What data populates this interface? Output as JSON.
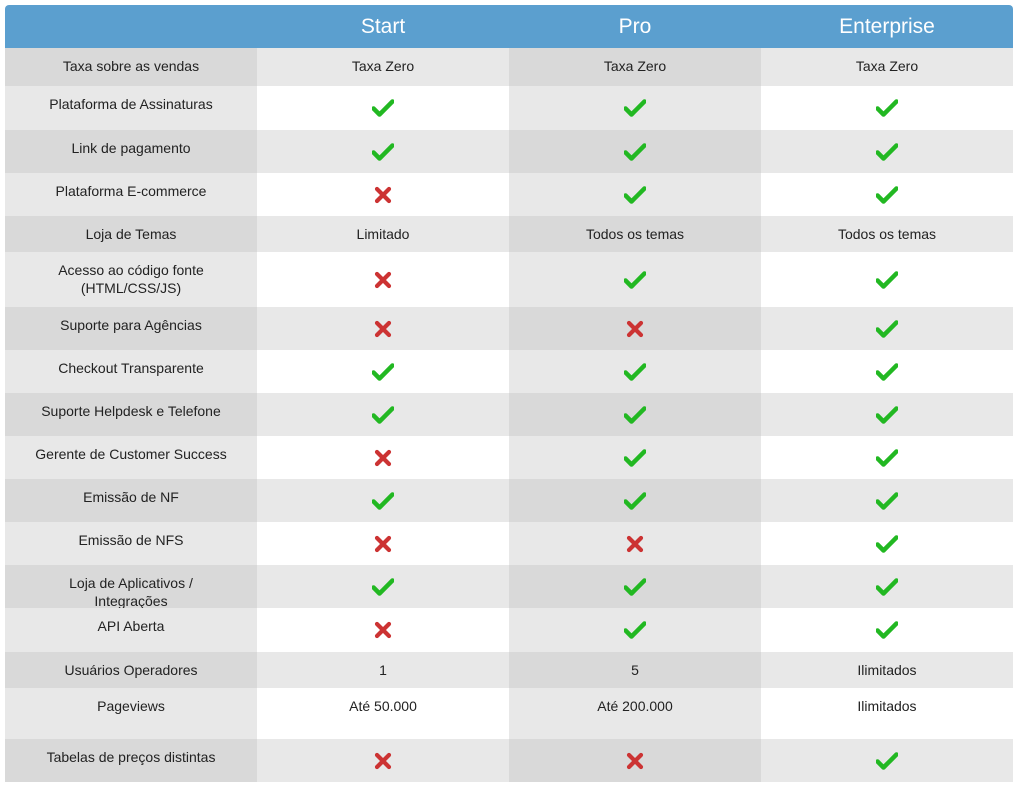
{
  "header": {
    "plans": [
      "Start",
      "Pro",
      "Enterprise"
    ]
  },
  "colors": {
    "header_bg": "#5b9fcf",
    "band_a": "#d9d9d9",
    "band_a_feature": "#e8e8e8",
    "band_b": "#ffffff",
    "band_b_feature": "#e8e8e8",
    "check": "#22b822",
    "cross": "#cc3333"
  },
  "rows": [
    {
      "feature": "Taxa sobre as vendas",
      "cells": [
        {
          "text": "Taxa Zero"
        },
        {
          "text": "Taxa Zero"
        },
        {
          "text": "Taxa Zero"
        }
      ]
    },
    {
      "feature": "Plataforma de Assinaturas",
      "cells": [
        {
          "icon": "check-icon"
        },
        {
          "icon": "check-icon"
        },
        {
          "icon": "check-icon"
        }
      ]
    },
    {
      "feature": "Link de pagamento",
      "cells": [
        {
          "icon": "check-icon"
        },
        {
          "icon": "check-icon"
        },
        {
          "icon": "check-icon"
        }
      ]
    },
    {
      "feature": "Plataforma E-commerce",
      "cells": [
        {
          "icon": "cross-icon"
        },
        {
          "icon": "check-icon"
        },
        {
          "icon": "check-icon"
        }
      ]
    },
    {
      "feature": "Loja de Temas",
      "cells": [
        {
          "text": "Limitado"
        },
        {
          "text": "Todos os temas"
        },
        {
          "text": "Todos os temas"
        }
      ]
    },
    {
      "feature": "Acesso ao código fonte (HTML/CSS/JS)",
      "cells": [
        {
          "icon": "cross-icon"
        },
        {
          "icon": "check-icon"
        },
        {
          "icon": "check-icon"
        }
      ]
    },
    {
      "feature": "Suporte para Agências",
      "cells": [
        {
          "icon": "cross-icon"
        },
        {
          "icon": "cross-icon"
        },
        {
          "icon": "check-icon"
        }
      ]
    },
    {
      "feature": "Checkout  Transparente",
      "cells": [
        {
          "icon": "check-icon"
        },
        {
          "icon": "check-icon"
        },
        {
          "icon": "check-icon"
        }
      ]
    },
    {
      "feature": "Suporte Helpdesk e Telefone",
      "cells": [
        {
          "icon": "check-icon"
        },
        {
          "icon": "check-icon"
        },
        {
          "icon": "check-icon"
        }
      ]
    },
    {
      "feature": "Gerente de Customer Success",
      "cells": [
        {
          "icon": "cross-icon"
        },
        {
          "icon": "check-icon"
        },
        {
          "icon": "check-icon"
        }
      ]
    },
    {
      "feature": "Emissão de NF",
      "cells": [
        {
          "icon": "check-icon"
        },
        {
          "icon": "check-icon"
        },
        {
          "icon": "check-icon"
        }
      ]
    },
    {
      "feature": "Emissão de NFS",
      "cells": [
        {
          "icon": "cross-icon"
        },
        {
          "icon": "cross-icon"
        },
        {
          "icon": "check-icon"
        }
      ]
    },
    {
      "feature": "Loja de Aplicativos / Integrações",
      "cells": [
        {
          "icon": "check-icon"
        },
        {
          "icon": "check-icon"
        },
        {
          "icon": "check-icon"
        }
      ]
    },
    {
      "feature": "API Aberta",
      "cells": [
        {
          "icon": "cross-icon"
        },
        {
          "icon": "check-icon"
        },
        {
          "icon": "check-icon"
        }
      ]
    },
    {
      "feature": "Usuários Operadores",
      "cells": [
        {
          "text": "1"
        },
        {
          "text": "5"
        },
        {
          "text": "Ilimitados"
        }
      ]
    },
    {
      "feature": "Pageviews",
      "cells": [
        {
          "text": "Até 50.000"
        },
        {
          "text": "Até 200.000"
        },
        {
          "text": "Ilimitados"
        }
      ]
    },
    {
      "feature": "Tabelas de preços distintas",
      "cells": [
        {
          "icon": "cross-icon"
        },
        {
          "icon": "cross-icon"
        },
        {
          "icon": "check-icon"
        }
      ]
    }
  ]
}
